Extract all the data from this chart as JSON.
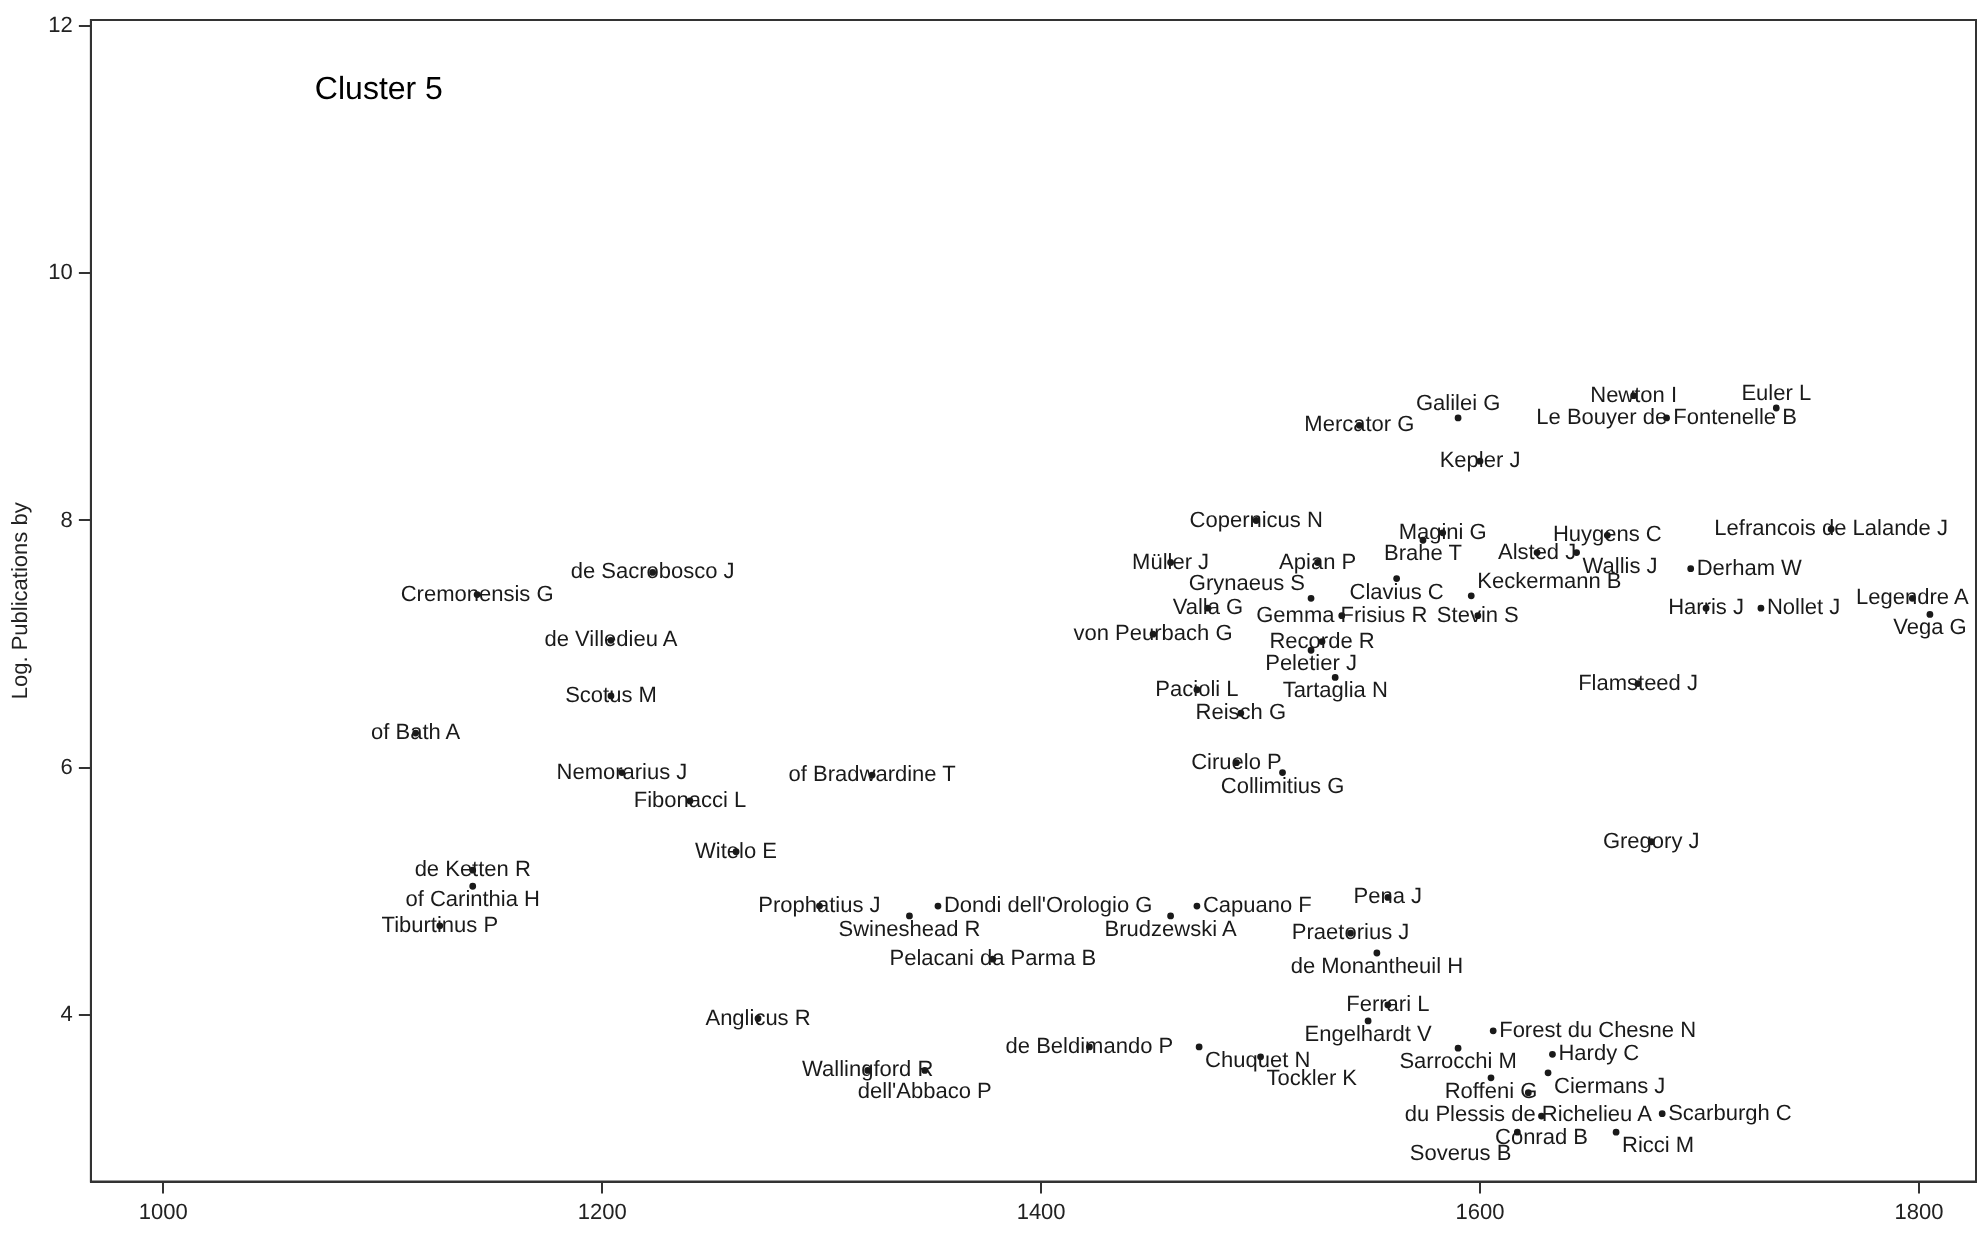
{
  "chart_data": {
    "type": "scatter",
    "title": "Cluster 5",
    "ylabel": "Log. Publications by",
    "xlim": [
      967,
      1826
    ],
    "ylim": [
      2.65,
      12.05
    ],
    "xticks": [
      1000,
      1200,
      1400,
      1600,
      1800
    ],
    "yticks": [
      4,
      6,
      8,
      10,
      12
    ],
    "marker": "circle",
    "legend": false,
    "series": [
      {
        "color": "#1a1a1a",
        "x": [
          1223,
          1143,
          1204,
          1204,
          1115,
          1209,
          1323,
          1240,
          1261,
          1141,
          1141,
          1126,
          1299,
          1353,
          1340,
          1378,
          1271,
          1321,
          1347,
          1422,
          1545,
          1590,
          1600,
          1498,
          1583,
          1574,
          1459,
          1526,
          1562,
          1476,
          1523,
          1537,
          1599,
          1596,
          1451,
          1528,
          1523,
          1534,
          1471,
          1491,
          1489,
          1510,
          1670,
          1685,
          1735,
          1658,
          1760,
          1626,
          1644,
          1696,
          1797,
          1703,
          1728,
          1805,
          1672,
          1678,
          1471,
          1459,
          1558,
          1541,
          1553,
          1558,
          1549,
          1472,
          1500,
          1590,
          1606,
          1633,
          1605,
          1631,
          1622,
          1683,
          1628,
          1617,
          1662
        ],
        "values": [
          7.58,
          7.4,
          7.03,
          6.58,
          6.28,
          5.96,
          5.94,
          5.73,
          5.32,
          5.17,
          5.04,
          4.72,
          4.88,
          4.88,
          4.8,
          4.45,
          3.97,
          3.55,
          3.55,
          3.74,
          8.77,
          8.83,
          8.48,
          8.0,
          7.9,
          7.84,
          7.66,
          7.66,
          7.53,
          7.29,
          7.37,
          7.23,
          7.23,
          7.39,
          7.08,
          7.02,
          6.95,
          6.73,
          6.63,
          6.44,
          6.04,
          5.96,
          9.01,
          8.83,
          8.91,
          7.88,
          7.93,
          7.74,
          7.74,
          7.61,
          7.37,
          7.29,
          7.29,
          7.24,
          6.68,
          5.4,
          4.88,
          4.8,
          4.95,
          4.66,
          4.5,
          4.08,
          3.95,
          3.74,
          3.66,
          3.73,
          3.87,
          3.68,
          3.49,
          3.53,
          3.37,
          3.2,
          3.18,
          3.05,
          3.05
        ],
        "value_labels": [
          "de Sacrobosco J",
          "Cremonensis G",
          "de Villedieu A",
          "Scotus M",
          "of Bath A",
          "Nemorarius J",
          "of Bradwardine T",
          "Fibonacci L",
          "Witelo E",
          "de Ketten R",
          "of Carinthia H",
          "Tiburtinus P",
          "Prophatius J",
          "Dondi dell'Orologio G",
          "Swineshead R",
          "Pelacani da Parma B",
          "Anglicus R",
          "Wallingford R",
          "dell'Abbaco P",
          "de Beldimando P",
          "Mercator G",
          "Galilei G",
          "Kepler J",
          "Copernicus N",
          "Magini G",
          "Brahe T",
          "Müller J",
          "Apian P",
          "Clavius C",
          "Valla G",
          "Grynaeus S",
          "Gemma Frisius R",
          "Stevin S",
          "Keckermann B",
          "von Peurbach G",
          "Recorde R",
          "Peletier J",
          "Tartaglia N",
          "Pacioli L",
          "Reisch G",
          "Ciruelo P",
          "Collimitius G",
          "Newton I",
          "Le Bouyer de Fontenelle B",
          "Euler L",
          "Huygens C",
          "Lefrancois de Lalande J",
          "Alsted J",
          "Wallis J",
          "Derham W",
          "Legendre A",
          "Harris J",
          "Nollet J",
          "Vega G",
          "Flamsteed J",
          "Gregory J",
          "Capuano F",
          "Brudzewski A",
          "Pena J",
          "Praetorius J",
          "de Monantheuil H",
          "Ferrari L",
          "Engelhardt V",
          "Chuquet N",
          "Tockler K",
          "Sarrocchi M",
          "Forest du Chesne N",
          "Hardy C",
          "Roffeni G",
          "Ciermans J",
          "du Plessis de Richelieu A",
          "Scarburgh C",
          "Conrad B",
          "Soverus B",
          "Ricci M"
        ]
      }
    ]
  }
}
